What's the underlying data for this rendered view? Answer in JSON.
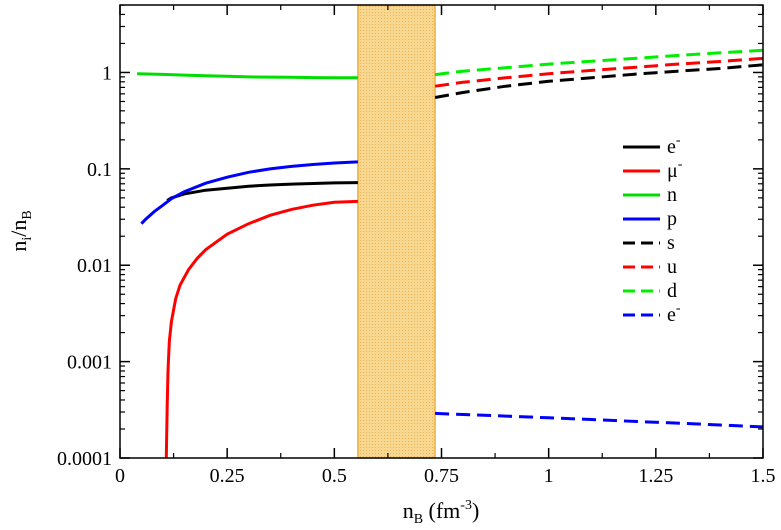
{
  "chart_data": {
    "type": "line",
    "xlabel": {
      "base": "n",
      "sub": "B",
      "mid": " (fm",
      "sup": "-3",
      "end": ")"
    },
    "ylabel": {
      "base": "n",
      "sub": "i",
      "mid": "/n",
      "sub2": "B"
    },
    "xlim": [
      0,
      1.5
    ],
    "ylim": [
      0.0001,
      2
    ],
    "yscale": "log",
    "x_ticks": [
      {
        "value": 0,
        "label": "0"
      },
      {
        "value": 0.25,
        "label": "0.25"
      },
      {
        "value": 0.5,
        "label": "0.5"
      },
      {
        "value": 0.75,
        "label": "0.75"
      },
      {
        "value": 1,
        "label": "1"
      },
      {
        "value": 1.25,
        "label": "1.25"
      },
      {
        "value": 1.5,
        "label": "1.5"
      }
    ],
    "y_ticks": [
      {
        "value": 0.0001,
        "label": "0.0001"
      },
      {
        "value": 0.001,
        "label": "0.001"
      },
      {
        "value": 0.01,
        "label": "0.01"
      },
      {
        "value": 0.1,
        "label": "0.1"
      },
      {
        "value": 1,
        "label": "1"
      }
    ],
    "mixed_phase_region": {
      "x_start": 0.555,
      "x_end": 0.735,
      "fill": "#f8d890",
      "hatch": "#f0b860",
      "stroke": "#e8a020"
    },
    "legend": {
      "placement": "right"
    },
    "series": [
      {
        "name": "e",
        "sup": "-",
        "color": "#000000",
        "dash": "solid",
        "x": [
          0.11,
          0.12,
          0.15,
          0.2,
          0.25,
          0.3,
          0.35,
          0.4,
          0.45,
          0.5,
          0.555
        ],
        "y": [
          0.047,
          0.05,
          0.055,
          0.06,
          0.063,
          0.066,
          0.068,
          0.0695,
          0.0705,
          0.0715,
          0.072
        ]
      },
      {
        "name": "μ",
        "sup": "-",
        "color": "#ff0000",
        "dash": "solid",
        "x": [
          0.108,
          0.11,
          0.112,
          0.115,
          0.12,
          0.13,
          0.14,
          0.16,
          0.18,
          0.2,
          0.25,
          0.3,
          0.35,
          0.4,
          0.45,
          0.5,
          0.555
        ],
        "y": [
          0.0001,
          0.00035,
          0.0008,
          0.0016,
          0.0026,
          0.0045,
          0.0062,
          0.009,
          0.0118,
          0.0145,
          0.021,
          0.027,
          0.033,
          0.038,
          0.042,
          0.045,
          0.046
        ]
      },
      {
        "name": "n",
        "sup": "",
        "color": "#00dd00",
        "dash": "solid",
        "x": [
          0.04,
          0.1,
          0.15,
          0.2,
          0.25,
          0.3,
          0.35,
          0.4,
          0.45,
          0.5,
          0.555
        ],
        "y": [
          0.97,
          0.955,
          0.94,
          0.925,
          0.912,
          0.9,
          0.895,
          0.89,
          0.885,
          0.882,
          0.88
        ]
      },
      {
        "name": "p",
        "sup": "",
        "color": "#0000ff",
        "dash": "solid",
        "x": [
          0.05,
          0.06,
          0.08,
          0.1,
          0.12,
          0.15,
          0.2,
          0.25,
          0.3,
          0.35,
          0.4,
          0.45,
          0.5,
          0.555
        ],
        "y": [
          0.027,
          0.03,
          0.036,
          0.042,
          0.049,
          0.058,
          0.071,
          0.082,
          0.092,
          0.1,
          0.106,
          0.111,
          0.115,
          0.118
        ]
      },
      {
        "name": "s",
        "sup": "",
        "color": "#000000",
        "dash": "dashed",
        "x": [
          0.735,
          0.8,
          0.9,
          1.0,
          1.1,
          1.2,
          1.3,
          1.4,
          1.5
        ],
        "y": [
          0.55,
          0.62,
          0.72,
          0.81,
          0.88,
          0.96,
          1.03,
          1.1,
          1.2
        ]
      },
      {
        "name": "u",
        "sup": "",
        "color": "#ff0000",
        "dash": "dashed",
        "x": [
          0.735,
          0.8,
          0.9,
          1.0,
          1.1,
          1.2,
          1.3,
          1.4,
          1.5
        ],
        "y": [
          0.72,
          0.79,
          0.88,
          0.97,
          1.05,
          1.13,
          1.22,
          1.3,
          1.4
        ]
      },
      {
        "name": "d",
        "sup": "",
        "color": "#00ee00",
        "dash": "dashed",
        "x": [
          0.735,
          0.8,
          0.9,
          1.0,
          1.1,
          1.2,
          1.3,
          1.4,
          1.5
        ],
        "y": [
          0.95,
          1.03,
          1.12,
          1.22,
          1.31,
          1.4,
          1.5,
          1.6,
          1.7
        ]
      },
      {
        "name": "e",
        "sup": "-",
        "color": "#0000ff",
        "dash": "dashed",
        "x": [
          0.735,
          0.8,
          0.9,
          1.0,
          1.1,
          1.2,
          1.3,
          1.4,
          1.5
        ],
        "y": [
          0.00029,
          0.000283,
          0.000272,
          0.000261,
          0.000251,
          0.00024,
          0.00023,
          0.00022,
          0.00021
        ]
      }
    ]
  }
}
